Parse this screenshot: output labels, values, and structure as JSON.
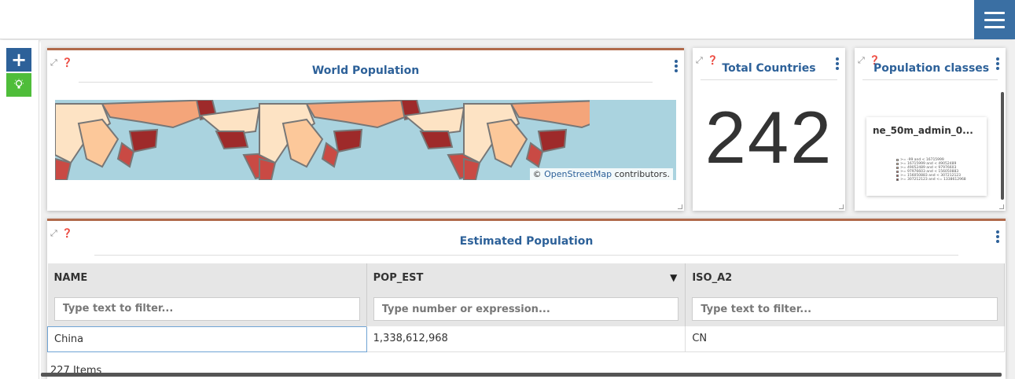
{
  "nav": {
    "menu_icon": "hamburger-icon"
  },
  "toolbar": {
    "add_icon": "+",
    "bulb_icon": "lightbulb-icon"
  },
  "widgets": {
    "map": {
      "title": "World Population",
      "attribution_prefix": "©",
      "attribution_link": "OpenStreetMap",
      "attribution_suffix": "contributors."
    },
    "counter": {
      "title": "Total Countries",
      "value": "242"
    },
    "legend": {
      "title": "Population classes",
      "layer": "ne_50m_admin_0...",
      "entries": [
        {
          "label": ">= -99 and < 16715999",
          "color": "#fde3c4"
        },
        {
          "label": ">= 16715999 and < 49052489",
          "color": "#fcc89a"
        },
        {
          "label": ">= 49052489 and < 97976603",
          "color": "#f4a57a"
        },
        {
          "label": ">= 97976603 and < 156050883",
          "color": "#e4786c"
        },
        {
          "label": ">= 156050883 and < 307212123",
          "color": "#c94a44"
        },
        {
          "label": ">= 307212123 and <= 1338612968",
          "color": "#9e2a2a"
        }
      ]
    },
    "table": {
      "title": "Estimated Population",
      "columns": [
        {
          "label": "NAME",
          "filter_placeholder": "Type text to filter..."
        },
        {
          "label": "POP_EST",
          "filter_placeholder": "Type number or expression...",
          "sort": "▼"
        },
        {
          "label": "ISO_A2",
          "filter_placeholder": "Type text to filter..."
        }
      ],
      "rows": [
        {
          "NAME": "China",
          "POP_EST": "1,338,612,968",
          "ISO_A2": "CN"
        }
      ],
      "items_count": "227 Items"
    }
  },
  "colors": {
    "accent": "#2d6199",
    "title": "#2d6199",
    "widget_border": "#b06a4b",
    "bulb_bg": "#4fbd3a"
  }
}
